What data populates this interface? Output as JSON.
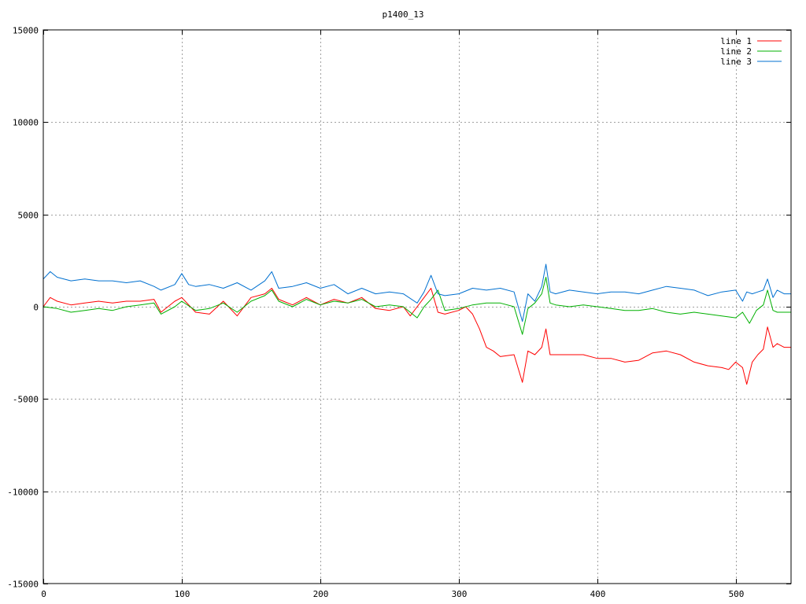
{
  "chart_data": {
    "type": "line",
    "title": "p1400_13",
    "xlim": [
      0,
      540
    ],
    "ylim": [
      -15000,
      15000
    ],
    "xticks": [
      0,
      100,
      200,
      300,
      400,
      500
    ],
    "yticks": [
      -15000,
      -10000,
      -5000,
      0,
      5000,
      10000,
      15000
    ],
    "grid": true,
    "legend_position": "top-right",
    "series": [
      {
        "name": "line 1",
        "color": "#ff0000",
        "x": [
          0,
          5,
          10,
          20,
          30,
          40,
          50,
          60,
          70,
          80,
          85,
          95,
          100,
          110,
          120,
          130,
          140,
          150,
          160,
          165,
          170,
          180,
          190,
          200,
          210,
          220,
          230,
          240,
          250,
          260,
          265,
          270,
          275,
          280,
          285,
          290,
          300,
          305,
          310,
          315,
          320,
          325,
          330,
          340,
          346,
          350,
          355,
          360,
          363,
          366,
          370,
          380,
          390,
          400,
          410,
          420,
          430,
          440,
          450,
          460,
          470,
          480,
          490,
          495,
          500,
          505,
          508,
          512,
          516,
          520,
          523,
          527,
          530,
          535,
          540
        ],
        "y": [
          0,
          500,
          300,
          100,
          200,
          300,
          200,
          300,
          300,
          400,
          -300,
          300,
          500,
          -300,
          -400,
          300,
          -500,
          500,
          700,
          1000,
          400,
          100,
          500,
          100,
          400,
          200,
          500,
          -100,
          -200,
          0,
          -500,
          0,
          500,
          1000,
          -300,
          -400,
          -200,
          0,
          -400,
          -1200,
          -2200,
          -2400,
          -2700,
          -2600,
          -4100,
          -2400,
          -2600,
          -2200,
          -1200,
          -2600,
          -2600,
          -2600,
          -2600,
          -2800,
          -2800,
          -3000,
          -2900,
          -2500,
          -2400,
          -2600,
          -3000,
          -3200,
          -3300,
          -3400,
          -3000,
          -3300,
          -4200,
          -3000,
          -2600,
          -2300,
          -1100,
          -2200,
          -2000,
          -2200,
          -2200
        ]
      },
      {
        "name": "line 2",
        "color": "#00b000",
        "x": [
          0,
          10,
          20,
          30,
          40,
          50,
          60,
          70,
          80,
          85,
          95,
          100,
          110,
          120,
          130,
          140,
          150,
          160,
          165,
          170,
          180,
          190,
          200,
          210,
          220,
          230,
          240,
          250,
          260,
          270,
          275,
          280,
          285,
          290,
          300,
          310,
          320,
          330,
          340,
          346,
          350,
          355,
          360,
          363,
          366,
          370,
          380,
          390,
          400,
          410,
          420,
          430,
          440,
          450,
          460,
          470,
          480,
          490,
          500,
          505,
          510,
          515,
          520,
          523,
          527,
          530,
          540
        ],
        "y": [
          0,
          -100,
          -300,
          -200,
          -100,
          -200,
          0,
          100,
          200,
          -400,
          0,
          300,
          -200,
          -100,
          200,
          -300,
          300,
          600,
          900,
          300,
          0,
          400,
          100,
          300,
          200,
          400,
          0,
          100,
          0,
          -600,
          0,
          400,
          900,
          -200,
          -100,
          100,
          200,
          200,
          0,
          -1500,
          -100,
          200,
          700,
          1600,
          200,
          100,
          0,
          100,
          0,
          -100,
          -200,
          -200,
          -100,
          -300,
          -400,
          -300,
          -400,
          -500,
          -600,
          -300,
          -900,
          -200,
          100,
          900,
          -200,
          -300,
          -300
        ]
      },
      {
        "name": "line 3",
        "color": "#0070d0",
        "x": [
          0,
          5,
          10,
          20,
          30,
          40,
          50,
          60,
          70,
          80,
          85,
          95,
          100,
          105,
          110,
          120,
          130,
          140,
          150,
          160,
          165,
          170,
          180,
          190,
          200,
          210,
          220,
          230,
          240,
          250,
          260,
          270,
          275,
          280,
          285,
          290,
          300,
          310,
          320,
          330,
          340,
          346,
          350,
          355,
          360,
          363,
          366,
          370,
          380,
          390,
          400,
          410,
          420,
          430,
          440,
          450,
          460,
          470,
          480,
          490,
          500,
          505,
          508,
          512,
          516,
          520,
          523,
          527,
          530,
          535,
          540
        ],
        "y": [
          1500,
          1900,
          1600,
          1400,
          1500,
          1400,
          1400,
          1300,
          1400,
          1100,
          900,
          1200,
          1800,
          1200,
          1100,
          1200,
          1000,
          1300,
          900,
          1400,
          1900,
          1000,
          1100,
          1300,
          1000,
          1200,
          700,
          1000,
          700,
          800,
          700,
          200,
          800,
          1700,
          700,
          600,
          700,
          1000,
          900,
          1000,
          800,
          -800,
          700,
          300,
          1100,
          2300,
          800,
          700,
          900,
          800,
          700,
          800,
          800,
          700,
          900,
          1100,
          1000,
          900,
          600,
          800,
          900,
          300,
          800,
          700,
          800,
          900,
          1500,
          500,
          900,
          700,
          700
        ]
      }
    ]
  }
}
